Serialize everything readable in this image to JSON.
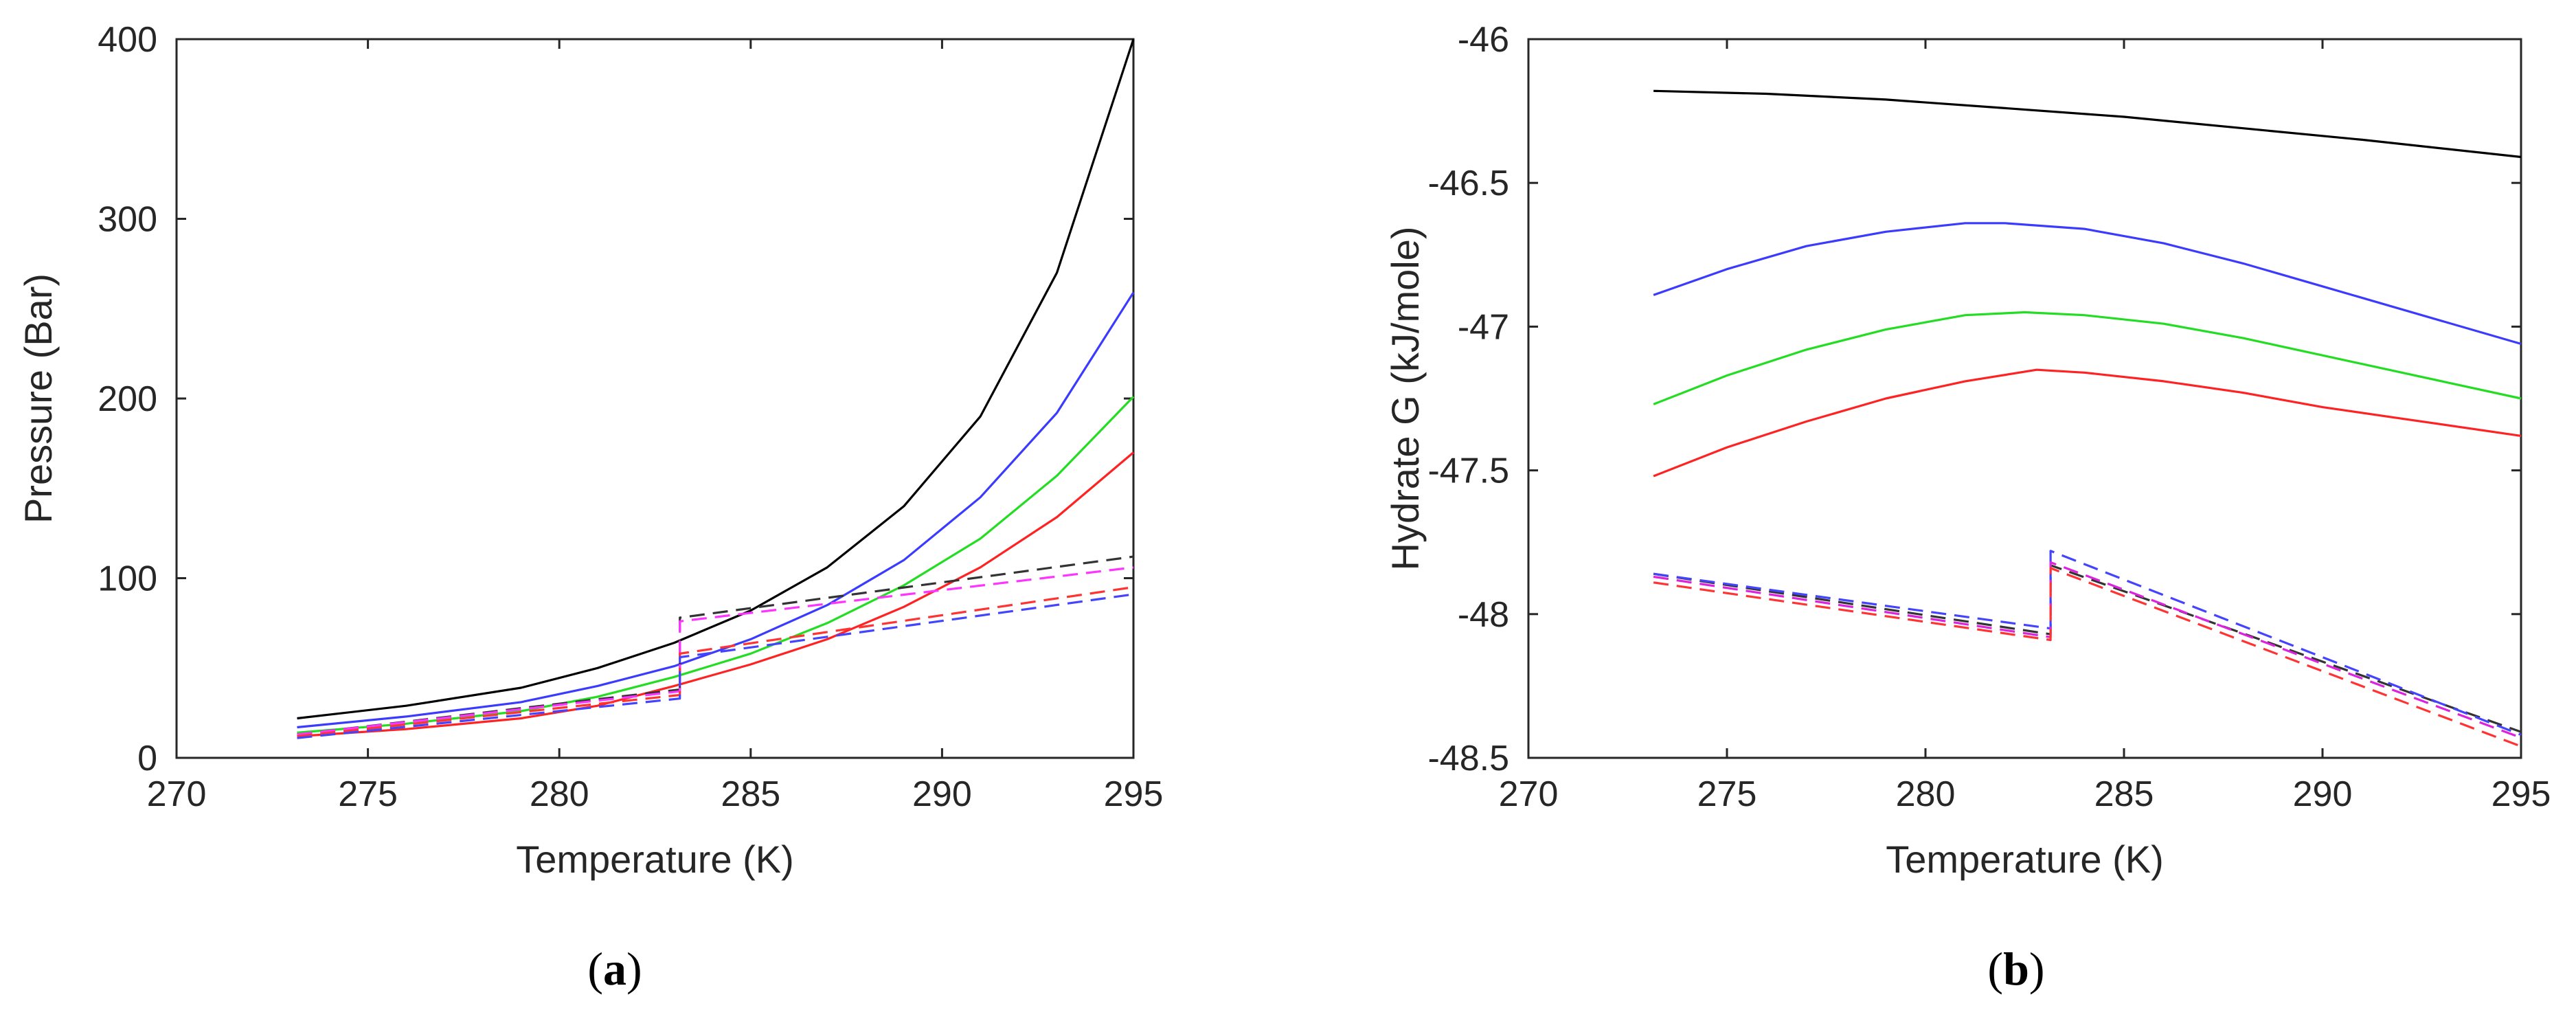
{
  "chart_data": [
    {
      "type": "line",
      "caption": "a",
      "xlabel": "Temperature (K)",
      "ylabel": "Pressure (Bar)",
      "xlim": [
        270,
        295
      ],
      "ylim": [
        0,
        400
      ],
      "xticks": [
        "270",
        "275",
        "280",
        "285",
        "290",
        "295"
      ],
      "yticks": [
        "0",
        "100",
        "200",
        "300",
        "400"
      ],
      "series": [
        {
          "name": "solid-black",
          "color": "#000000",
          "dash": false,
          "x": [
            273.15,
            276,
            279,
            281,
            283,
            285,
            287,
            289,
            291,
            293,
            295
          ],
          "y": [
            22,
            29,
            39,
            50,
            64,
            82,
            106,
            140,
            190,
            270,
            400
          ]
        },
        {
          "name": "solid-blue",
          "color": "#3b3bff",
          "dash": false,
          "x": [
            273.15,
            276,
            279,
            281,
            283,
            285,
            287,
            289,
            291,
            293,
            295
          ],
          "y": [
            17,
            23,
            31,
            40,
            51,
            66,
            85,
            110,
            145,
            192,
            259
          ]
        },
        {
          "name": "solid-green",
          "color": "#22dd22",
          "dash": false,
          "x": [
            273.15,
            276,
            279,
            281,
            283,
            285,
            287,
            289,
            291,
            293,
            295
          ],
          "y": [
            14,
            19,
            26,
            34,
            45,
            58,
            75,
            96,
            122,
            157,
            201
          ]
        },
        {
          "name": "solid-red",
          "color": "#ff2222",
          "dash": false,
          "x": [
            273.15,
            276,
            279,
            281,
            283,
            285,
            287,
            289,
            291,
            293,
            295
          ],
          "y": [
            12,
            16,
            22,
            29,
            40,
            52,
            66,
            84,
            106,
            134,
            170
          ]
        },
        {
          "name": "dashed-black",
          "color": "#333333",
          "dash": true,
          "x": [
            273.15,
            283.15,
            283.15,
            295
          ],
          "y": [
            13,
            38,
            78,
            112
          ]
        },
        {
          "name": "dashed-magenta",
          "color": "#ff33ff",
          "dash": true,
          "x": [
            273.15,
            283.15,
            283.15,
            295
          ],
          "y": [
            13,
            37,
            76,
            106
          ]
        },
        {
          "name": "dashed-red",
          "color": "#ff3333",
          "dash": true,
          "x": [
            273.15,
            283.15,
            283.15,
            295
          ],
          "y": [
            12,
            35,
            58,
            95
          ]
        },
        {
          "name": "dashed-blue",
          "color": "#4444ff",
          "dash": true,
          "x": [
            273.15,
            283.15,
            283.15,
            295
          ],
          "y": [
            11,
            33,
            56,
            91
          ]
        }
      ]
    },
    {
      "type": "line",
      "caption": "b",
      "xlabel": "Temperature (K)",
      "ylabel": "Hydrate G (kJ/mole)",
      "xlim": [
        270,
        295
      ],
      "ylim": [
        -48.5,
        -46
      ],
      "xticks": [
        "270",
        "275",
        "280",
        "285",
        "290",
        "295"
      ],
      "yticks": [
        "-46",
        "-46.5",
        "-47",
        "-47.5",
        "-48",
        "-48.5"
      ],
      "series": [
        {
          "name": "solid-black",
          "color": "#000000",
          "dash": false,
          "x": [
            273.15,
            276,
            279,
            282,
            285,
            288,
            291,
            295
          ],
          "y": [
            -46.18,
            -46.19,
            -46.21,
            -46.24,
            -46.27,
            -46.31,
            -46.35,
            -46.41
          ]
        },
        {
          "name": "solid-blue",
          "color": "#3b3bff",
          "dash": false,
          "x": [
            273.15,
            275,
            277,
            279,
            281,
            282,
            284,
            286,
            288,
            290,
            292,
            295
          ],
          "y": [
            -46.89,
            -46.8,
            -46.72,
            -46.67,
            -46.64,
            -46.64,
            -46.66,
            -46.71,
            -46.78,
            -46.86,
            -46.94,
            -47.06
          ]
        },
        {
          "name": "solid-green",
          "color": "#22dd22",
          "dash": false,
          "x": [
            273.15,
            275,
            277,
            279,
            281,
            282.5,
            284,
            286,
            288,
            290,
            292,
            295
          ],
          "y": [
            -47.27,
            -47.17,
            -47.08,
            -47.01,
            -46.96,
            -46.95,
            -46.96,
            -46.99,
            -47.04,
            -47.1,
            -47.16,
            -47.25
          ]
        },
        {
          "name": "solid-red",
          "color": "#ff2222",
          "dash": false,
          "x": [
            273.15,
            275,
            277,
            279,
            281,
            282.8,
            284,
            286,
            288,
            290,
            292,
            295
          ],
          "y": [
            -47.52,
            -47.42,
            -47.33,
            -47.25,
            -47.19,
            -47.15,
            -47.16,
            -47.19,
            -47.23,
            -47.28,
            -47.32,
            -47.38
          ]
        },
        {
          "name": "dashed-black",
          "color": "#333333",
          "dash": true,
          "x": [
            273.15,
            283.15,
            283.15,
            295
          ],
          "y": [
            -47.86,
            -48.07,
            -47.83,
            -48.41
          ]
        },
        {
          "name": "dashed-blue",
          "color": "#4444ff",
          "dash": true,
          "x": [
            273.15,
            283.15,
            283.15,
            295
          ],
          "y": [
            -47.86,
            -48.05,
            -47.78,
            -48.42
          ]
        },
        {
          "name": "dashed-magenta",
          "color": "#dd22dd",
          "dash": true,
          "x": [
            273.15,
            283.15,
            283.15,
            295
          ],
          "y": [
            -47.87,
            -48.08,
            -47.82,
            -48.43
          ]
        },
        {
          "name": "dashed-red",
          "color": "#ff3333",
          "dash": true,
          "x": [
            273.15,
            283.15,
            283.15,
            295
          ],
          "y": [
            -47.89,
            -48.09,
            -47.84,
            -48.46
          ]
        }
      ]
    }
  ]
}
